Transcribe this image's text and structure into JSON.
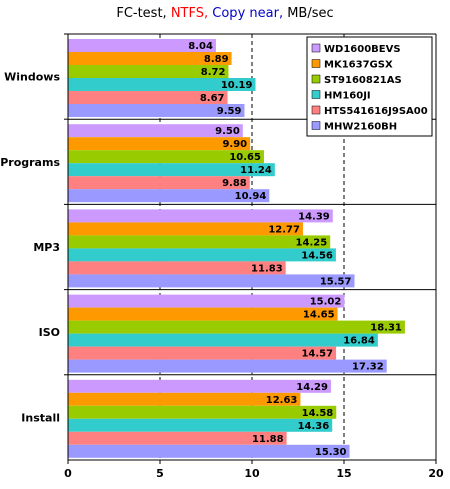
{
  "title": {
    "part1": "FC-test,",
    "part2": "NTFS,",
    "part3": "Copy near,",
    "part4": "MB/sec",
    "colors": {
      "normal": "#000000",
      "ntfs": "#ff0000",
      "copy": "#0000cc"
    }
  },
  "chart_data": {
    "type": "bar",
    "orientation": "horizontal",
    "categories": [
      "Windows",
      "Programs",
      "MP3",
      "ISO",
      "Install"
    ],
    "series": [
      {
        "name": "WD1600BEVS",
        "color": "#cc99ff",
        "values": [
          8.04,
          9.5,
          14.39,
          15.02,
          14.29
        ]
      },
      {
        "name": "MK1637GSX",
        "color": "#ff9900",
        "values": [
          8.89,
          9.9,
          12.77,
          14.65,
          12.63
        ]
      },
      {
        "name": "ST9160821AS",
        "color": "#99cc00",
        "values": [
          8.72,
          10.65,
          14.25,
          18.31,
          14.58
        ]
      },
      {
        "name": "HM160JI",
        "color": "#33cccc",
        "values": [
          10.19,
          11.24,
          14.56,
          16.84,
          14.36
        ]
      },
      {
        "name": "HTS541616J9SA00",
        "color": "#ff8080",
        "values": [
          8.67,
          9.88,
          11.83,
          14.57,
          11.88
        ]
      },
      {
        "name": "MHW2160BH",
        "color": "#9999ff",
        "values": [
          9.59,
          10.94,
          15.57,
          17.32,
          15.3
        ]
      }
    ],
    "xlim": [
      0,
      20
    ],
    "xticks": [
      0,
      5,
      10,
      15,
      20
    ],
    "grid": "vertical dashed",
    "legend": "top-right",
    "xlabel": "",
    "ylabel": ""
  }
}
